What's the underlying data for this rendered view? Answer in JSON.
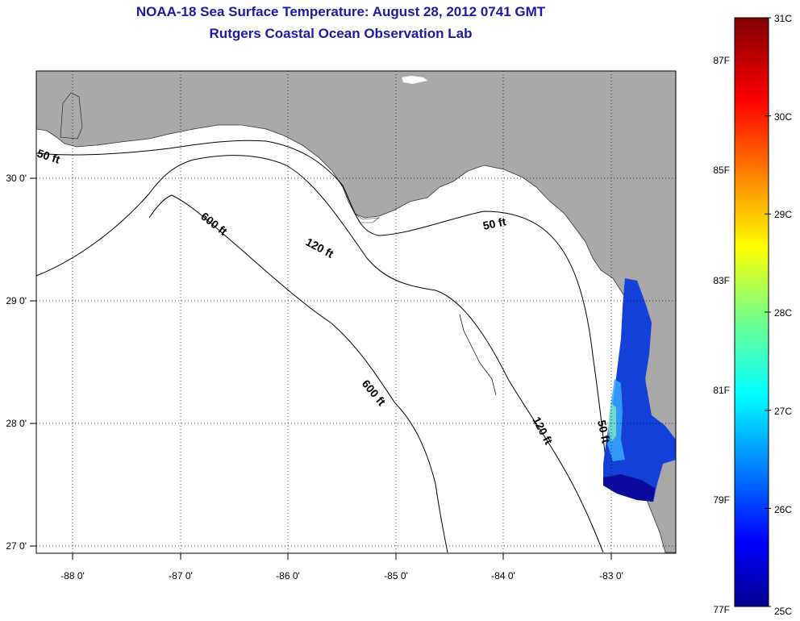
{
  "title": "NOAA-18 Sea Surface Temperature:  August 28, 2012 0741 GMT",
  "subtitle": "Rutgers Coastal Ocean Observation Lab",
  "map": {
    "land_color": "#a9a9a9",
    "water_color": "#ffffff",
    "lon_ticks": [
      "-88 0'",
      "-87 0'",
      "-86 0'",
      "-85 0'",
      "-84 0'",
      "-83 0'"
    ],
    "lat_ticks": [
      "30 0'",
      "29 0'",
      "28 0'",
      "27 0'"
    ],
    "contour_labels": [
      "50 ft",
      "600 ft",
      "120 ft",
      "50 ft",
      "600 ft",
      "120 ft",
      "50 ft"
    ]
  },
  "colorbar": {
    "min_c": 25,
    "max_c": 31,
    "celsius_labels": [
      "31C",
      "30C",
      "29C",
      "28C",
      "27C",
      "26C",
      "25C"
    ],
    "fahrenheit_labels": [
      "87F",
      "85F",
      "83F",
      "81F",
      "79F",
      "77F"
    ],
    "colors": [
      "#00008f",
      "#0000ff",
      "#0080ff",
      "#00ffff",
      "#80ff80",
      "#ffff00",
      "#ff8000",
      "#ff0000",
      "#800000"
    ]
  }
}
